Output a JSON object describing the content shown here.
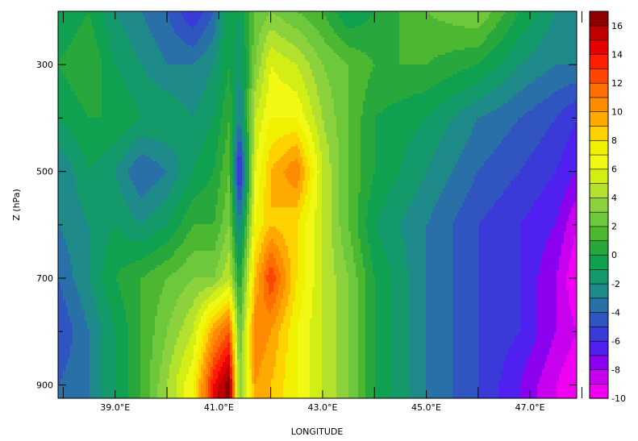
{
  "chart_data": {
    "type": "heatmap",
    "title": "",
    "xlabel": "LONGITUDE",
    "ylabel": "Z (hPa)",
    "x_ticks": [
      {
        "value": 39,
        "label": "39.0°E"
      },
      {
        "value": 41,
        "label": "41.0°E"
      },
      {
        "value": 43,
        "label": "43.0°E"
      },
      {
        "value": 45,
        "label": "45.0°E"
      },
      {
        "value": 47,
        "label": "47.0°E"
      }
    ],
    "x_minor_ticks": [
      38,
      40,
      42,
      44,
      46,
      48
    ],
    "xlim": [
      37.9,
      47.9
    ],
    "y_ticks": [
      {
        "value": 300,
        "label": "300"
      },
      {
        "value": 500,
        "label": "500"
      },
      {
        "value": 700,
        "label": "700"
      },
      {
        "value": 900,
        "label": "900"
      }
    ],
    "y_minor_ticks": [
      400,
      600,
      800
    ],
    "ylim": [
      200,
      925
    ],
    "y_inverted": true,
    "colorbar": {
      "levels": [
        -10,
        -9,
        -8,
        -7,
        -6,
        -5,
        -4,
        -3,
        -2,
        -1,
        0,
        1,
        2,
        3,
        4,
        5,
        6,
        7,
        8,
        9,
        10,
        11,
        12,
        13,
        14,
        15,
        16,
        17
      ],
      "labels": [
        {
          "value": -10,
          "label": "-10"
        },
        {
          "value": -8,
          "label": "-8"
        },
        {
          "value": -6,
          "label": "-6"
        },
        {
          "value": -4,
          "label": "-4"
        },
        {
          "value": -2,
          "label": "-2"
        },
        {
          "value": 0,
          "label": "0"
        },
        {
          "value": 2,
          "label": "2"
        },
        {
          "value": 4,
          "label": "4"
        },
        {
          "value": 6,
          "label": "6"
        },
        {
          "value": 8,
          "label": "8"
        },
        {
          "value": 10,
          "label": "10"
        },
        {
          "value": 12,
          "label": "12"
        },
        {
          "value": 14,
          "label": "14"
        },
        {
          "value": 16,
          "label": "16"
        }
      ],
      "colors": [
        "#f000f0",
        "#c800f0",
        "#8c00f0",
        "#5020f0",
        "#3a3ad8",
        "#3055c0",
        "#2a70a8",
        "#1f8a8a",
        "#13996a",
        "#0fa050",
        "#28a83c",
        "#4cb832",
        "#6ec83c",
        "#8cd23c",
        "#b4e12d",
        "#d2ee14",
        "#f0f814",
        "#f0f000",
        "#ffd200",
        "#ffaa00",
        "#ff8c00",
        "#ff6e00",
        "#ff4600",
        "#ff1e00",
        "#e60000",
        "#c00000",
        "#8c0000"
      ]
    },
    "grid": {
      "lons": [
        37.9,
        38.5,
        39.0,
        39.5,
        40.0,
        40.5,
        40.9,
        41.2,
        41.4,
        41.7,
        42.0,
        42.5,
        43.0,
        43.5,
        44.0,
        45.0,
        46.0,
        46.8,
        47.5,
        47.9
      ],
      "levels_hpa": [
        200,
        300,
        400,
        500,
        600,
        700,
        800,
        900,
        925
      ],
      "values": [
        [
          -1,
          0,
          -2,
          -3,
          -4,
          -6,
          -4,
          0,
          -1,
          2,
          3,
          2,
          1,
          -1,
          0,
          2,
          3,
          0,
          -2,
          -3
        ],
        [
          0,
          1,
          -1,
          -2,
          -3,
          -3,
          -2,
          0,
          -2,
          3,
          6,
          5,
          3,
          2,
          1,
          1,
          0,
          -2,
          -3,
          -3
        ],
        [
          -1,
          0,
          0,
          -1,
          -1,
          -2,
          -1,
          1,
          -3,
          5,
          7,
          7,
          4,
          2,
          0,
          -1,
          -3,
          -4,
          -5,
          -6
        ],
        [
          -3,
          -1,
          -2,
          -4,
          -3,
          -1,
          0,
          2,
          -7,
          6,
          9,
          11,
          5,
          2,
          0,
          -2,
          -4,
          -5,
          -6,
          -7
        ],
        [
          -3,
          -2,
          -1,
          -2,
          -1,
          1,
          1,
          3,
          -3,
          7,
          9,
          8,
          5,
          2,
          -1,
          -3,
          -5,
          -6,
          -7,
          -9
        ],
        [
          -4,
          -2,
          0,
          1,
          2,
          3,
          3,
          5,
          0,
          9,
          13,
          8,
          5,
          3,
          0,
          -3,
          -5,
          -6,
          -8,
          -10
        ],
        [
          -5,
          -3,
          -1,
          1,
          3,
          5,
          10,
          12,
          2,
          11,
          10,
          7,
          5,
          3,
          0,
          -3,
          -5,
          -6,
          -8,
          -9
        ],
        [
          -4,
          -3,
          -1,
          1,
          4,
          7,
          14,
          17,
          3,
          10,
          9,
          7,
          5,
          3,
          0,
          -3,
          -5,
          -7,
          -9,
          -10
        ],
        [
          -4,
          -3,
          -1,
          1,
          4,
          7,
          14,
          17,
          3,
          10,
          9,
          7,
          5,
          3,
          0,
          -3,
          -5,
          -7,
          -9,
          -10
        ]
      ]
    }
  }
}
